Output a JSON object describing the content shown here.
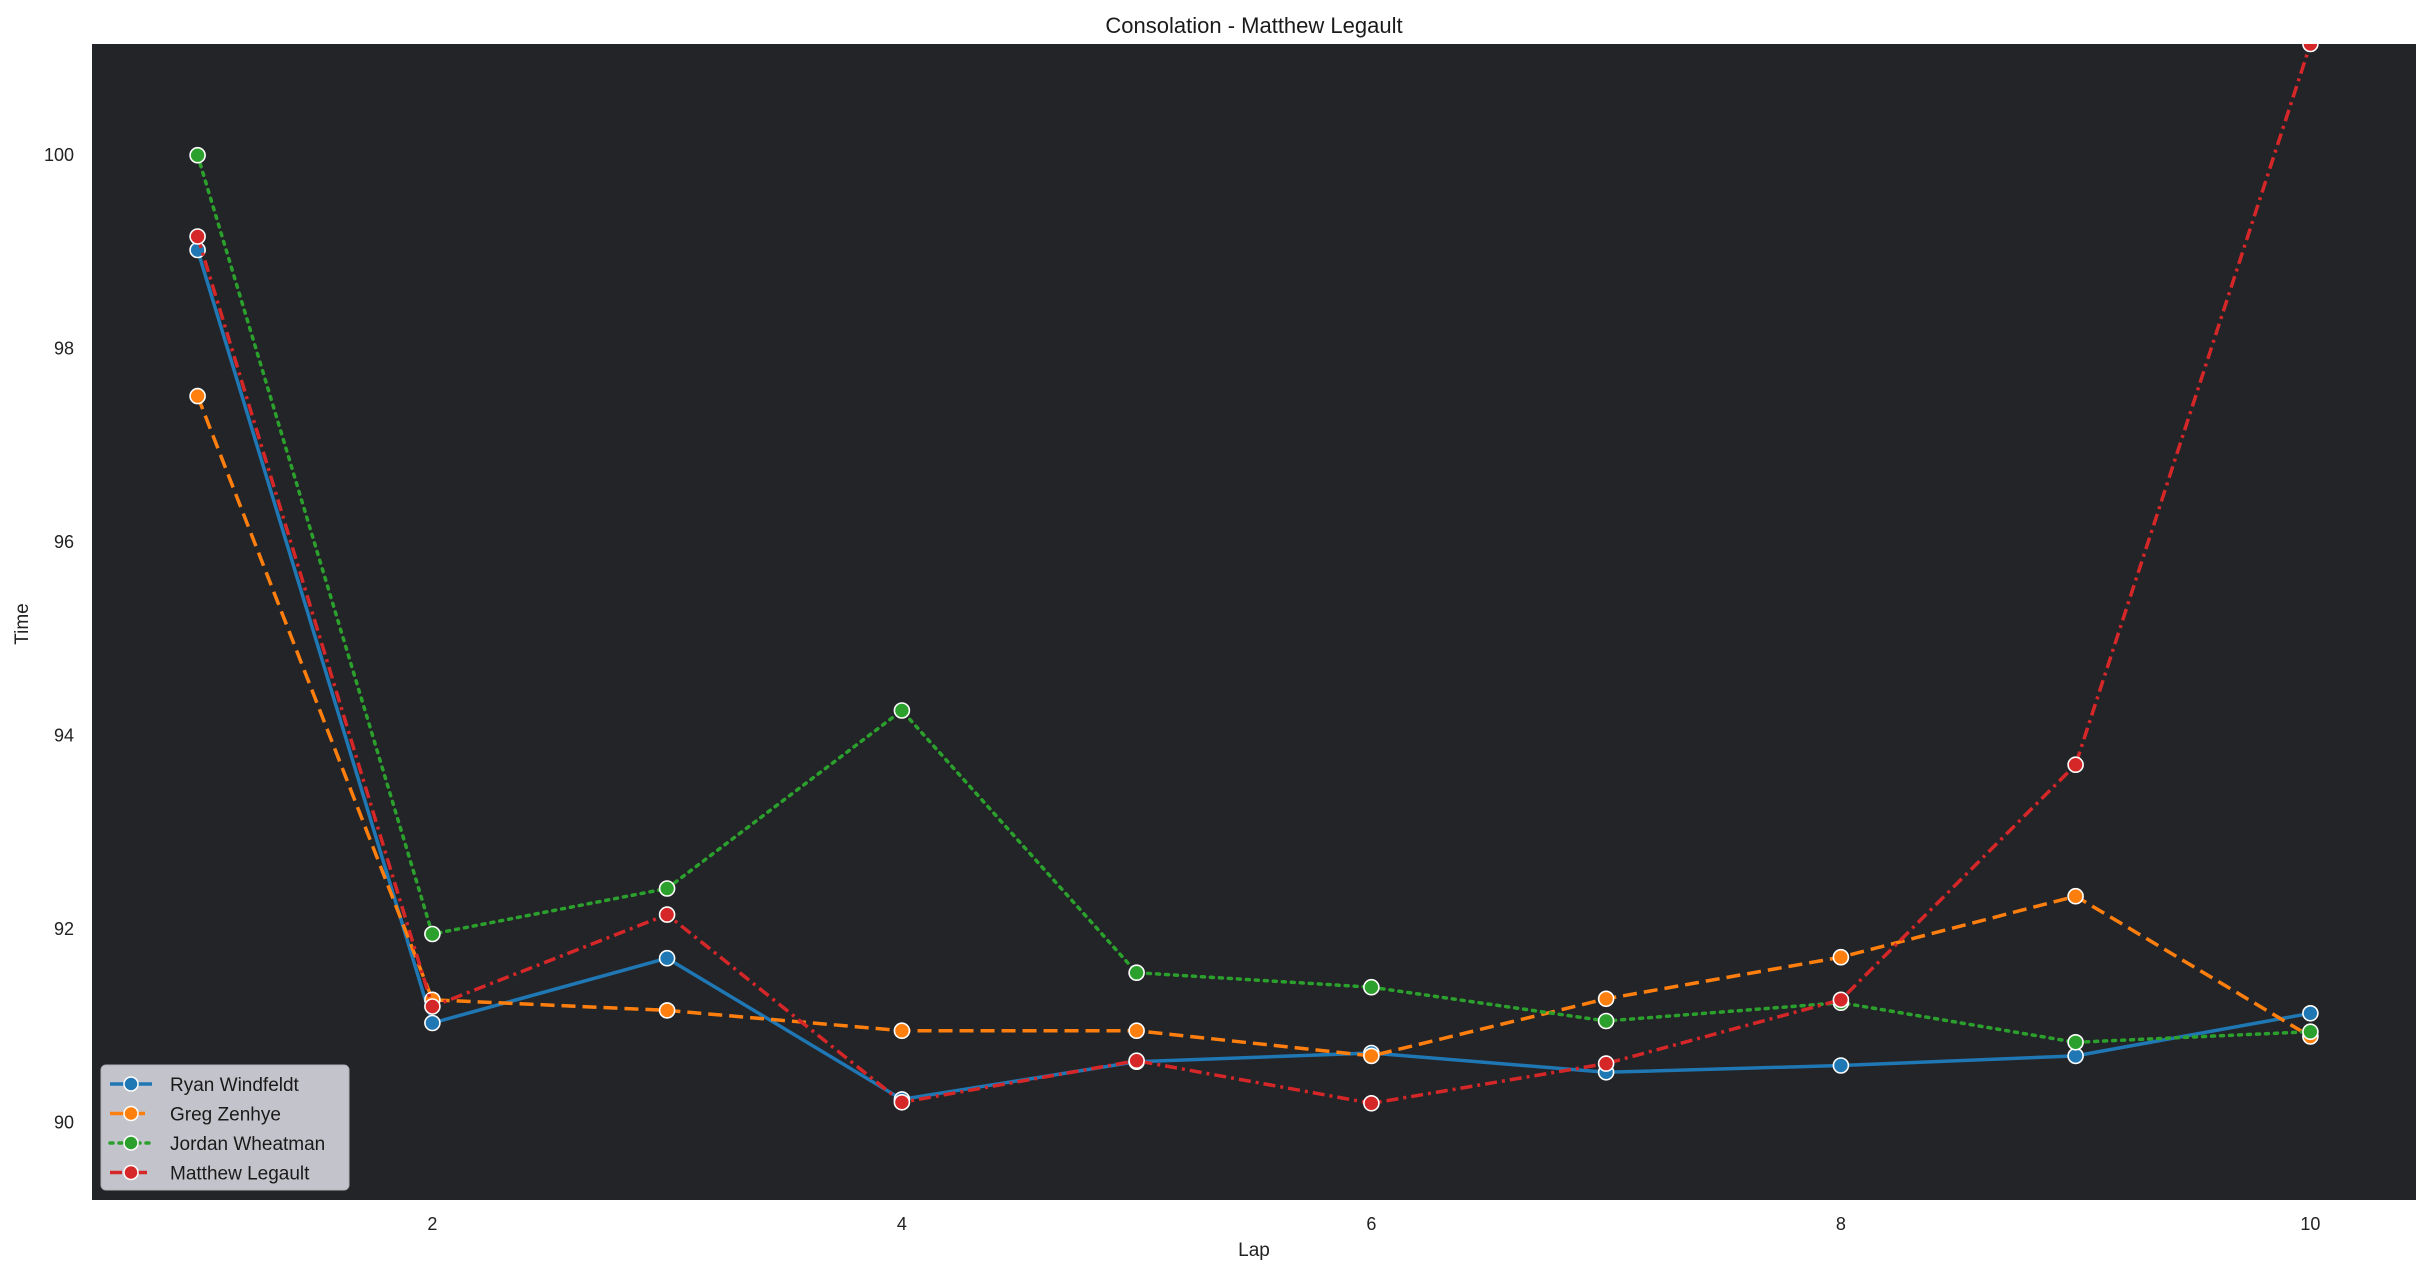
{
  "chart_data": {
    "type": "line",
    "title": "Consolation - Matthew Legault",
    "xlabel": "Lap",
    "ylabel": "Time",
    "x": [
      1,
      2,
      3,
      4,
      5,
      6,
      7,
      8,
      9,
      10
    ],
    "xlim": [
      0.55,
      10.45
    ],
    "ylim": [
      89.2,
      101.15
    ],
    "xticks": [
      2,
      4,
      6,
      8,
      10
    ],
    "yticks": [
      90,
      92,
      94,
      96,
      98,
      100
    ],
    "grid": false,
    "legend_position": "bottom-left",
    "plot_background": "#222428",
    "series": [
      {
        "name": "Ryan Windfeldt",
        "color": "#1f77b4",
        "dash": "solid",
        "values": [
          99.02,
          91.03,
          91.7,
          90.24,
          90.63,
          90.72,
          90.52,
          90.59,
          90.69,
          91.13
        ]
      },
      {
        "name": "Greg Zenhye",
        "color": "#ff7f0e",
        "dash": "dashed",
        "values": [
          97.51,
          91.27,
          91.16,
          90.95,
          90.95,
          90.69,
          91.28,
          91.71,
          92.34,
          90.89
        ]
      },
      {
        "name": "Jordan Wheatman",
        "color": "#2ca02c",
        "dash": "dotted",
        "values": [
          100.0,
          91.95,
          92.42,
          94.26,
          91.55,
          91.4,
          91.05,
          91.24,
          90.83,
          90.94
        ]
      },
      {
        "name": "Matthew Legault",
        "color": "#d62728",
        "dash": "dashdot",
        "values": [
          99.16,
          91.2,
          92.15,
          90.21,
          90.64,
          90.2,
          90.61,
          91.27,
          93.7,
          101.15
        ]
      }
    ]
  }
}
